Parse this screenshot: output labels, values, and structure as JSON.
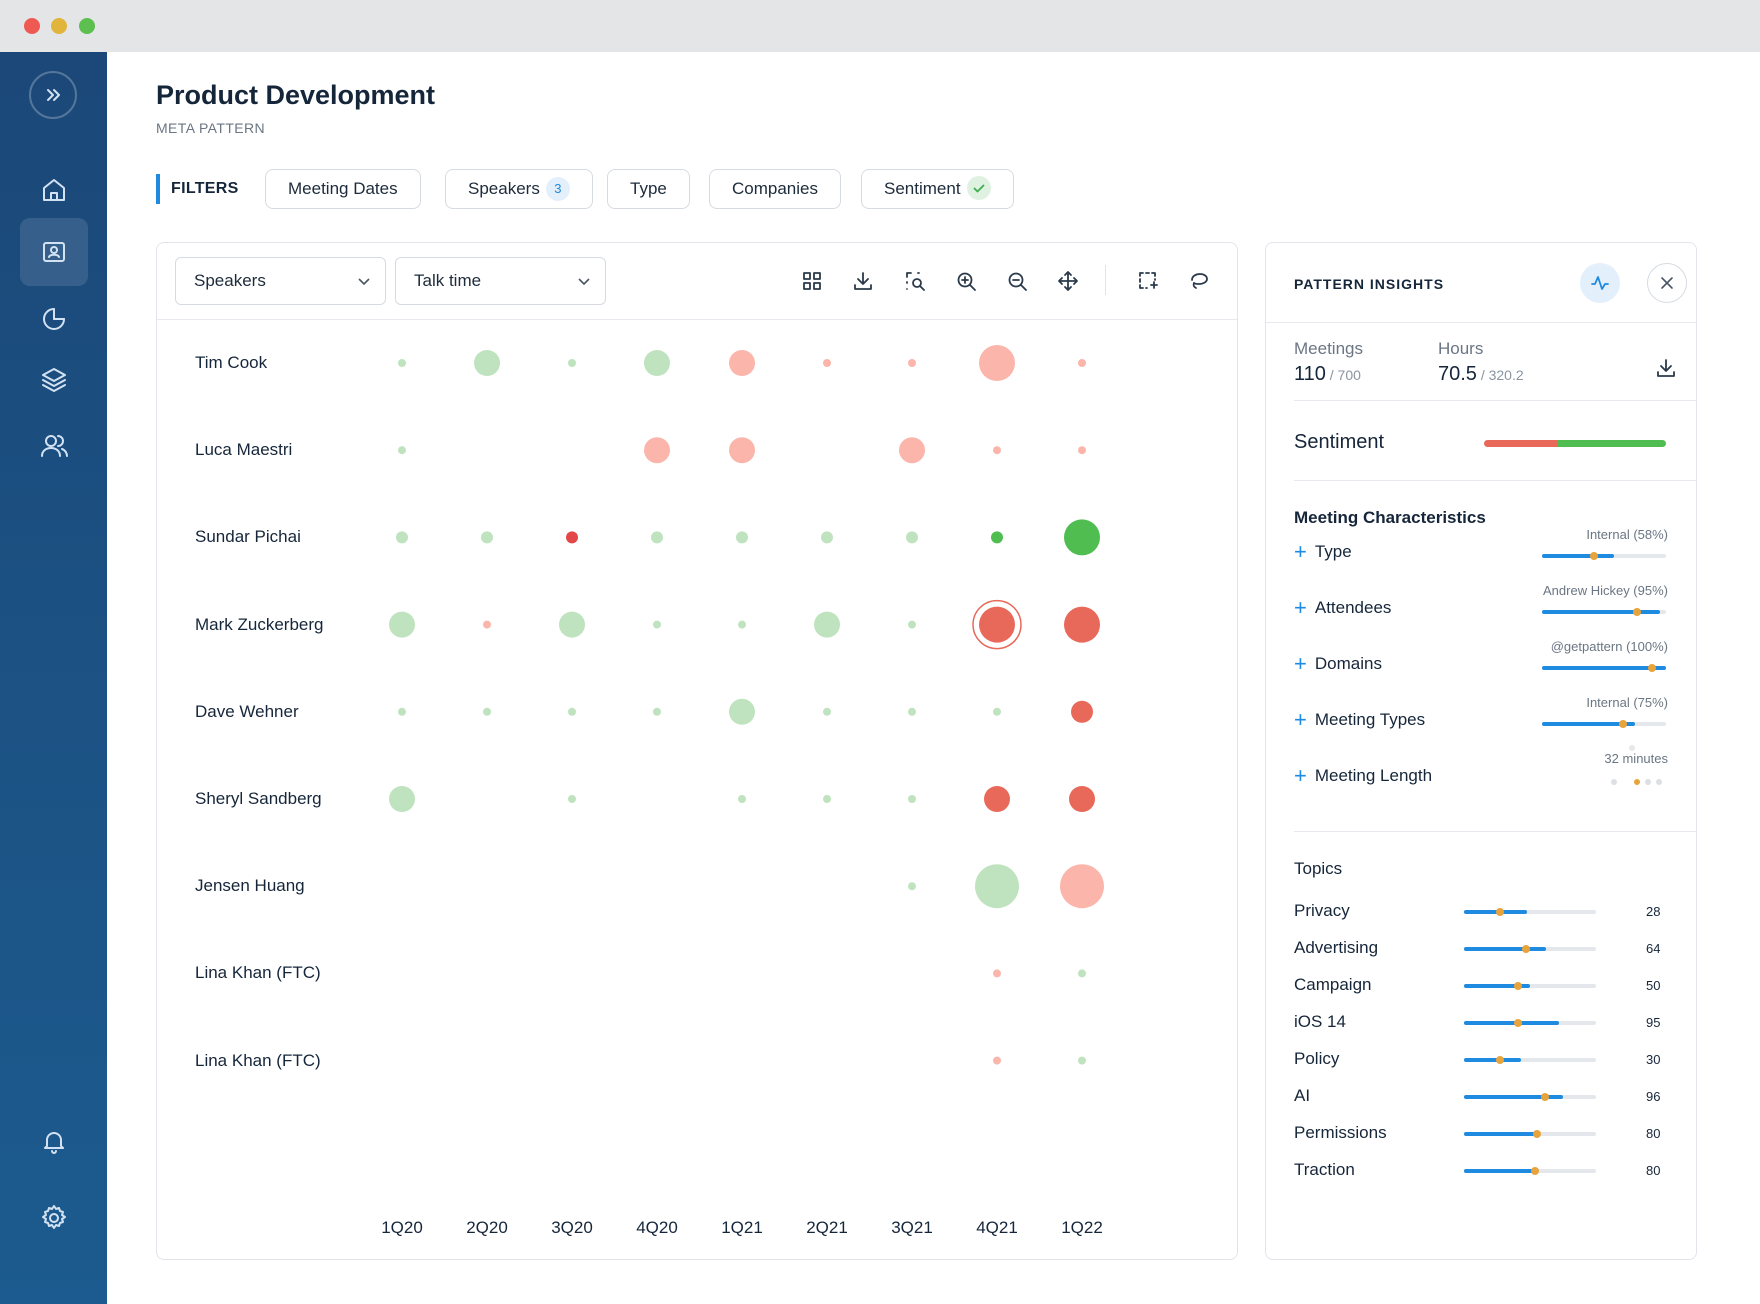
{
  "page": {
    "title": "Product Development",
    "subtitle": "META PATTERN"
  },
  "filters": {
    "label": "FILTERS",
    "chips": [
      {
        "label": "Meeting Dates"
      },
      {
        "label": "Speakers",
        "badge": "3"
      },
      {
        "label": "Type"
      },
      {
        "label": "Companies"
      },
      {
        "label": "Sentiment",
        "checked": true
      }
    ]
  },
  "chart": {
    "dimension_select": "Speakers",
    "metric_select": "Talk time",
    "toolbar_icons": [
      "grid-icon",
      "download-icon",
      "zoom-select-icon",
      "zoom-in-icon",
      "zoom-out-icon",
      "pan-icon",
      "box-select-icon",
      "lasso-icon"
    ]
  },
  "chart_data": {
    "type": "scatter",
    "title": "",
    "x": [
      "1Q20",
      "2Q20",
      "3Q20",
      "4Q20",
      "1Q21",
      "2Q21",
      "3Q21",
      "4Q21",
      "1Q22"
    ],
    "y": [
      "Tim Cook",
      "Luca Maestri",
      "Sundar Pichai",
      "Mark Zuckerberg",
      "Dave Wehner",
      "Sheryl Sandberg",
      "Jensen Huang",
      "Lina Khan (FTC)",
      "Lina Khan (FTC)"
    ],
    "size_scale": "bubble size = talk time (relative, s/m/l/xl)",
    "color_scale": {
      "positive_light": "#bfe3bf",
      "positive": "#4fbd4f",
      "negative_light": "#fbb5ab",
      "negative": "#e8685a",
      "negative_dark": "#e34848"
    },
    "points": [
      {
        "speaker": "Tim Cook",
        "quarter": "1Q20",
        "size": "s",
        "sentiment": "positive_light"
      },
      {
        "speaker": "Tim Cook",
        "quarter": "2Q20",
        "size": "l",
        "sentiment": "positive_light"
      },
      {
        "speaker": "Tim Cook",
        "quarter": "3Q20",
        "size": "s",
        "sentiment": "positive_light"
      },
      {
        "speaker": "Tim Cook",
        "quarter": "4Q20",
        "size": "l",
        "sentiment": "positive_light"
      },
      {
        "speaker": "Tim Cook",
        "quarter": "1Q21",
        "size": "l",
        "sentiment": "negative_light"
      },
      {
        "speaker": "Tim Cook",
        "quarter": "2Q21",
        "size": "s",
        "sentiment": "negative_light"
      },
      {
        "speaker": "Tim Cook",
        "quarter": "3Q21",
        "size": "s",
        "sentiment": "negative_light"
      },
      {
        "speaker": "Tim Cook",
        "quarter": "4Q21",
        "size": "xl",
        "sentiment": "negative_light"
      },
      {
        "speaker": "Tim Cook",
        "quarter": "1Q22",
        "size": "s",
        "sentiment": "negative_light"
      },
      {
        "speaker": "Luca Maestri",
        "quarter": "1Q20",
        "size": "s",
        "sentiment": "positive_light"
      },
      {
        "speaker": "Luca Maestri",
        "quarter": "4Q20",
        "size": "l",
        "sentiment": "negative_light"
      },
      {
        "speaker": "Luca Maestri",
        "quarter": "1Q21",
        "size": "l",
        "sentiment": "negative_light"
      },
      {
        "speaker": "Luca Maestri",
        "quarter": "3Q21",
        "size": "l",
        "sentiment": "negative_light"
      },
      {
        "speaker": "Luca Maestri",
        "quarter": "4Q21",
        "size": "s",
        "sentiment": "negative_light"
      },
      {
        "speaker": "Luca Maestri",
        "quarter": "1Q22",
        "size": "s",
        "sentiment": "negative_light"
      },
      {
        "speaker": "Sundar Pichai",
        "quarter": "1Q20",
        "size": "m",
        "sentiment": "positive_light"
      },
      {
        "speaker": "Sundar Pichai",
        "quarter": "2Q20",
        "size": "m",
        "sentiment": "positive_light"
      },
      {
        "speaker": "Sundar Pichai",
        "quarter": "3Q20",
        "size": "m",
        "sentiment": "negative_dark"
      },
      {
        "speaker": "Sundar Pichai",
        "quarter": "4Q20",
        "size": "m",
        "sentiment": "positive_light"
      },
      {
        "speaker": "Sundar Pichai",
        "quarter": "1Q21",
        "size": "m",
        "sentiment": "positive_light"
      },
      {
        "speaker": "Sundar Pichai",
        "quarter": "2Q21",
        "size": "m",
        "sentiment": "positive_light"
      },
      {
        "speaker": "Sundar Pichai",
        "quarter": "3Q21",
        "size": "m",
        "sentiment": "positive_light"
      },
      {
        "speaker": "Sundar Pichai",
        "quarter": "4Q21",
        "size": "m",
        "sentiment": "positive"
      },
      {
        "speaker": "Sundar Pichai",
        "quarter": "1Q22",
        "size": "xl",
        "sentiment": "positive"
      },
      {
        "speaker": "Mark Zuckerberg",
        "quarter": "1Q20",
        "size": "l",
        "sentiment": "positive_light"
      },
      {
        "speaker": "Mark Zuckerberg",
        "quarter": "2Q20",
        "size": "s",
        "sentiment": "negative_light"
      },
      {
        "speaker": "Mark Zuckerberg",
        "quarter": "3Q20",
        "size": "l",
        "sentiment": "positive_light"
      },
      {
        "speaker": "Mark Zuckerberg",
        "quarter": "4Q20",
        "size": "s",
        "sentiment": "positive_light"
      },
      {
        "speaker": "Mark Zuckerberg",
        "quarter": "1Q21",
        "size": "s",
        "sentiment": "positive_light"
      },
      {
        "speaker": "Mark Zuckerberg",
        "quarter": "2Q21",
        "size": "l",
        "sentiment": "positive_light"
      },
      {
        "speaker": "Mark Zuckerberg",
        "quarter": "3Q21",
        "size": "s",
        "sentiment": "positive_light"
      },
      {
        "speaker": "Mark Zuckerberg",
        "quarter": "4Q21",
        "size": "xl",
        "sentiment": "negative",
        "selected": true
      },
      {
        "speaker": "Mark Zuckerberg",
        "quarter": "1Q22",
        "size": "xl",
        "sentiment": "negative"
      },
      {
        "speaker": "Dave Wehner",
        "quarter": "1Q20",
        "size": "s",
        "sentiment": "positive_light"
      },
      {
        "speaker": "Dave Wehner",
        "quarter": "2Q20",
        "size": "s",
        "sentiment": "positive_light"
      },
      {
        "speaker": "Dave Wehner",
        "quarter": "3Q20",
        "size": "s",
        "sentiment": "positive_light"
      },
      {
        "speaker": "Dave Wehner",
        "quarter": "4Q20",
        "size": "s",
        "sentiment": "positive_light"
      },
      {
        "speaker": "Dave Wehner",
        "quarter": "1Q21",
        "size": "l",
        "sentiment": "positive_light"
      },
      {
        "speaker": "Dave Wehner",
        "quarter": "2Q21",
        "size": "s",
        "sentiment": "positive_light"
      },
      {
        "speaker": "Dave Wehner",
        "quarter": "3Q21",
        "size": "s",
        "sentiment": "positive_light"
      },
      {
        "speaker": "Dave Wehner",
        "quarter": "4Q21",
        "size": "s",
        "sentiment": "positive_light"
      },
      {
        "speaker": "Dave Wehner",
        "quarter": "1Q22",
        "size": "ml",
        "sentiment": "negative"
      },
      {
        "speaker": "Sheryl Sandberg",
        "quarter": "1Q20",
        "size": "l",
        "sentiment": "positive_light"
      },
      {
        "speaker": "Sheryl Sandberg",
        "quarter": "3Q20",
        "size": "s",
        "sentiment": "positive_light"
      },
      {
        "speaker": "Sheryl Sandberg",
        "quarter": "1Q21",
        "size": "s",
        "sentiment": "positive_light"
      },
      {
        "speaker": "Sheryl Sandberg",
        "quarter": "2Q21",
        "size": "s",
        "sentiment": "positive_light"
      },
      {
        "speaker": "Sheryl Sandberg",
        "quarter": "3Q21",
        "size": "s",
        "sentiment": "positive_light"
      },
      {
        "speaker": "Sheryl Sandberg",
        "quarter": "4Q21",
        "size": "l",
        "sentiment": "negative"
      },
      {
        "speaker": "Sheryl Sandberg",
        "quarter": "1Q22",
        "size": "l",
        "sentiment": "negative"
      },
      {
        "speaker": "Jensen Huang",
        "quarter": "3Q21",
        "size": "s",
        "sentiment": "positive_light"
      },
      {
        "speaker": "Jensen Huang",
        "quarter": "4Q21",
        "size": "xxl",
        "sentiment": "positive_light"
      },
      {
        "speaker": "Jensen Huang",
        "quarter": "1Q22",
        "size": "xxl",
        "sentiment": "negative_light"
      },
      {
        "speaker": "Lina Khan (FTC)",
        "row": 7,
        "quarter": "4Q21",
        "size": "s",
        "sentiment": "negative_light"
      },
      {
        "speaker": "Lina Khan (FTC)",
        "row": 7,
        "quarter": "1Q22",
        "size": "s",
        "sentiment": "positive_light"
      },
      {
        "speaker": "Lina Khan (FTC)",
        "row": 8,
        "quarter": "4Q21",
        "size": "s",
        "sentiment": "negative_light"
      },
      {
        "speaker": "Lina Khan (FTC)",
        "row": 8,
        "quarter": "1Q22",
        "size": "s",
        "sentiment": "positive_light"
      }
    ]
  },
  "insights": {
    "title": "PATTERN INSIGHTS",
    "meetings_label": "Meetings",
    "meetings_value": "110",
    "meetings_total": " / 700",
    "hours_label": "Hours",
    "hours_value": "70.5",
    "hours_total": " / 320.2",
    "sentiment_label": "Sentiment",
    "sentiment_negative_fraction": 0.4,
    "sentiment_colors": {
      "negative": "#e8685a",
      "positive": "#4fbd4f"
    },
    "characteristics_title": "Meeting Characteristics",
    "characteristics": [
      {
        "name": "Type",
        "value": "Internal (58%)",
        "fill": 0.58,
        "marker": 0.42
      },
      {
        "name": "Attendees",
        "value": "Andrew Hickey (95%)",
        "fill": 0.95,
        "marker": 0.77
      },
      {
        "name": "Domains",
        "value": "@getpattern (100%)",
        "fill": 1.0,
        "marker": 0.89
      },
      {
        "name": "Meeting Types",
        "value": "Internal (75%)",
        "fill": 0.75,
        "marker": 0.65
      },
      {
        "name": "Meeting Length",
        "value": "32 minutes"
      }
    ],
    "topics_title": "Topics",
    "topics": [
      {
        "name": "Privacy",
        "count": "28",
        "fill": 0.48,
        "marker": 0.27
      },
      {
        "name": "Advertising",
        "count": "64",
        "fill": 0.62,
        "marker": 0.47
      },
      {
        "name": "Campaign",
        "count": "50",
        "fill": 0.5,
        "marker": 0.41
      },
      {
        "name": "iOS 14",
        "count": "95",
        "fill": 0.72,
        "marker": 0.41
      },
      {
        "name": "Policy",
        "count": "30",
        "fill": 0.43,
        "marker": 0.27
      },
      {
        "name": "AI",
        "count": "96",
        "fill": 0.75,
        "marker": 0.61
      },
      {
        "name": "Permissions",
        "count": "80",
        "fill": 0.56,
        "marker": 0.55
      },
      {
        "name": "Traction",
        "count": "80",
        "fill": 0.56,
        "marker": 0.54
      }
    ]
  }
}
